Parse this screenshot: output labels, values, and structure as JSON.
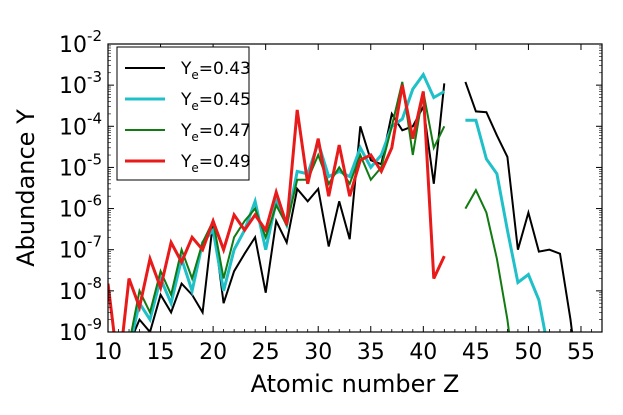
{
  "chart_data": {
    "type": "line",
    "xlabel": "Atomic number Z",
    "ylabel": "Abundance Y",
    "xlim": [
      10,
      57
    ],
    "ylim": [
      1e-09,
      0.01
    ],
    "yscale": "log",
    "x_ticks": [
      10,
      15,
      20,
      25,
      30,
      35,
      40,
      45,
      50,
      55
    ],
    "y_ticks": [
      {
        "base": "10",
        "exp": "-9"
      },
      {
        "base": "10",
        "exp": "-8"
      },
      {
        "base": "10",
        "exp": "-7"
      },
      {
        "base": "10",
        "exp": "-6"
      },
      {
        "base": "10",
        "exp": "-5"
      },
      {
        "base": "10",
        "exp": "-4"
      },
      {
        "base": "10",
        "exp": "-3"
      },
      {
        "base": "10",
        "exp": "-2"
      }
    ],
    "legend_position": "top-left",
    "grid": false,
    "series": [
      {
        "name": "Y_e=0.43",
        "label_main": "Y",
        "label_sub": "e",
        "label_rest": "=0.43",
        "color": "#000000",
        "linewidth": 2,
        "segments": [
          [
            [
              12,
              5e-10
            ],
            [
              13,
              2e-09
            ],
            [
              14,
              1e-09
            ],
            [
              15,
              8e-09
            ],
            [
              16,
              3e-09
            ],
            [
              17,
              1.5e-08
            ],
            [
              18,
              8e-09
            ],
            [
              19,
              3e-09
            ],
            [
              20,
              5e-07
            ],
            [
              21,
              5e-09
            ],
            [
              22,
              3e-08
            ],
            [
              23,
              8e-08
            ],
            [
              24,
              2e-07
            ],
            [
              25,
              9e-09
            ],
            [
              26,
              5e-07
            ],
            [
              27,
              1.5e-07
            ],
            [
              28,
              3e-06
            ],
            [
              29,
              1.5e-06
            ],
            [
              30,
              3e-06
            ],
            [
              31,
              1.2e-07
            ],
            [
              32,
              1.5e-06
            ],
            [
              33,
              1.8e-07
            ],
            [
              34,
              0.0001
            ],
            [
              35,
              1.5e-05
            ],
            [
              36,
              1.2e-05
            ],
            [
              37,
              0.0002
            ],
            [
              38,
              8e-05
            ],
            [
              39,
              0.0001
            ],
            [
              40,
              0.0003
            ],
            [
              41,
              4e-06
            ],
            [
              42,
              0.0011
            ]
          ],
          [
            [
              44,
              0.0012
            ],
            [
              45,
              0.00023
            ],
            [
              46,
              0.00022
            ],
            [
              47,
              6e-05
            ],
            [
              48,
              1.8e-05
            ],
            [
              49,
              1e-07
            ],
            [
              50,
              8e-07
            ],
            [
              51,
              9e-08
            ],
            [
              52,
              1e-07
            ],
            [
              53,
              8e-08
            ],
            [
              54,
              2e-09
            ],
            [
              54.3,
              5e-10
            ]
          ]
        ]
      },
      {
        "name": "Y_e=0.45",
        "label_main": "Y",
        "label_sub": "e",
        "label_rest": "=0.45",
        "color": "#20c0c8",
        "linewidth": 3,
        "segments": [
          [
            [
              12,
              4e-10
            ],
            [
              13,
              5e-09
            ],
            [
              14,
              2e-09
            ],
            [
              15,
              2e-08
            ],
            [
              16,
              5e-09
            ],
            [
              17,
              6e-08
            ],
            [
              18,
              1e-08
            ],
            [
              19,
              1.5e-07
            ],
            [
              20,
              3e-07
            ],
            [
              21,
              1e-08
            ],
            [
              22,
              1e-07
            ],
            [
              23,
              3e-07
            ],
            [
              24,
              1.5e-06
            ],
            [
              25,
              1e-07
            ],
            [
              26,
              1.5e-06
            ],
            [
              27,
              4e-07
            ],
            [
              28,
              8e-06
            ],
            [
              29,
              7e-06
            ],
            [
              30,
              4e-05
            ],
            [
              31,
              6e-06
            ],
            [
              32,
              8e-06
            ],
            [
              33,
              6e-06
            ],
            [
              34,
              3e-05
            ],
            [
              35,
              1e-05
            ],
            [
              36,
              2e-05
            ],
            [
              37,
              0.0001
            ],
            [
              38,
              0.00015
            ],
            [
              39,
              0.0008
            ],
            [
              40,
              0.0018
            ],
            [
              41,
              0.0005
            ],
            [
              42,
              0.0007
            ]
          ],
          [
            [
              44,
              0.00014
            ],
            [
              45,
              0.00014
            ],
            [
              46,
              1.6e-05
            ],
            [
              47,
              7e-06
            ],
            [
              48,
              3e-07
            ],
            [
              49,
              1.6e-08
            ],
            [
              50,
              2.5e-08
            ],
            [
              51,
              6e-09
            ],
            [
              51.8,
              5e-10
            ]
          ]
        ]
      },
      {
        "name": "Y_e=0.47",
        "label_main": "Y",
        "label_sub": "e",
        "label_rest": "=0.47",
        "color": "#127a12",
        "linewidth": 2,
        "segments": [
          [
            [
              12,
              5e-10
            ],
            [
              13,
              1e-08
            ],
            [
              14,
              3e-09
            ],
            [
              15,
              3e-08
            ],
            [
              16,
              8e-09
            ],
            [
              17,
              1e-07
            ],
            [
              18,
              2e-08
            ],
            [
              19,
              1.5e-07
            ],
            [
              20,
              5e-07
            ],
            [
              21,
              2e-08
            ],
            [
              22,
              2e-07
            ],
            [
              23,
              5e-07
            ],
            [
              24,
              1e-06
            ],
            [
              25,
              2e-07
            ],
            [
              26,
              1.2e-06
            ],
            [
              27,
              4e-07
            ],
            [
              28,
              5e-06
            ],
            [
              29,
              5e-06
            ],
            [
              30,
              2e-05
            ],
            [
              31,
              4e-06
            ],
            [
              32,
              1e-05
            ],
            [
              33,
              4e-06
            ],
            [
              34,
              2e-05
            ],
            [
              35,
              5e-06
            ],
            [
              36,
              1e-05
            ],
            [
              37,
              0.0001
            ],
            [
              38,
              0.0012
            ],
            [
              39,
              2e-05
            ],
            [
              40,
              0.0007
            ],
            [
              41,
              3e-05
            ],
            [
              42,
              0.0001
            ]
          ],
          [
            [
              44,
              1e-06
            ],
            [
              45,
              2.8e-06
            ],
            [
              46,
              8e-07
            ],
            [
              47,
              6e-08
            ],
            [
              48,
              2e-09
            ],
            [
              48.3,
              5e-10
            ]
          ]
        ]
      },
      {
        "name": "Y_e=0.49",
        "label_main": "Y",
        "label_sub": "e",
        "label_rest": "=0.49",
        "color": "#e81a1a",
        "linewidth": 3,
        "segments": [
          [
            [
              10,
              1.5e-08
            ],
            [
              10.7,
              5e-10
            ]
          ],
          [
            [
              11.3,
              5e-10
            ],
            [
              12,
              2e-08
            ],
            [
              13,
              4e-09
            ],
            [
              14,
              6e-08
            ],
            [
              15,
              1.2e-08
            ],
            [
              16,
              1.5e-07
            ],
            [
              17,
              5e-08
            ],
            [
              18,
              2e-07
            ],
            [
              19,
              1e-07
            ],
            [
              20,
              5e-07
            ],
            [
              21,
              1e-07
            ],
            [
              22,
              7e-07
            ],
            [
              23,
              3e-07
            ],
            [
              24,
              7e-07
            ],
            [
              25,
              3e-07
            ],
            [
              26,
              2.5e-06
            ],
            [
              27,
              4e-07
            ],
            [
              28,
              0.00025
            ],
            [
              29,
              4e-06
            ],
            [
              30,
              5e-05
            ],
            [
              31,
              2e-06
            ],
            [
              32,
              3.5e-05
            ],
            [
              33,
              2e-06
            ],
            [
              34,
              1.5e-05
            ],
            [
              35,
              2e-05
            ],
            [
              36,
              8e-06
            ],
            [
              37,
              3e-05
            ],
            [
              38,
              0.001
            ],
            [
              39,
              5e-05
            ],
            [
              40,
              0.0007
            ],
            [
              41,
              2e-08
            ],
            [
              42,
              7e-08
            ]
          ]
        ]
      }
    ]
  }
}
